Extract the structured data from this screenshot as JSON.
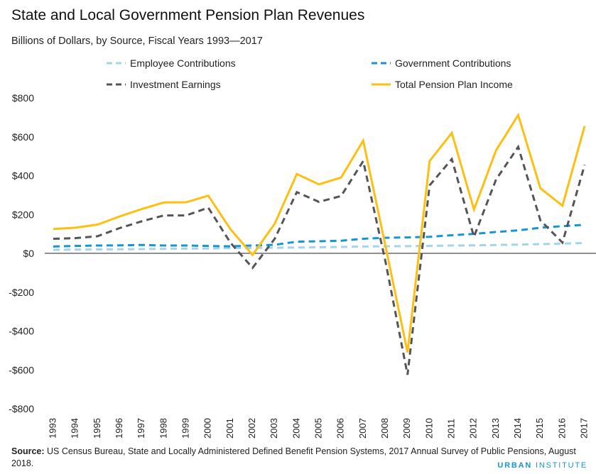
{
  "title": "State and Local Government Pension Plan Revenues",
  "subtitle": "Billions of Dollars, by Source, Fiscal Years 1993—2017",
  "source_label": "Source:",
  "source_text": " US Census Bureau, State and Locally Administered Defined Benefit Pension Systems, 2017 Annual Survey of Public Pensions, August 2018.",
  "brand": {
    "bold": "URBAN",
    "normal": " INSTITUTE"
  },
  "chart_data": {
    "type": "line",
    "legend_position": "top",
    "grid": false,
    "ylim": [
      -800,
      800
    ],
    "yticks": [
      800,
      600,
      400,
      200,
      0,
      -200,
      -400,
      -600,
      -800
    ],
    "ytick_labels": [
      "$800",
      "$600",
      "$400",
      "$200",
      "$0",
      "-$200",
      "-$400",
      "-$600",
      "-$800"
    ],
    "x": [
      "1993",
      "1994",
      "1995",
      "1996",
      "1997",
      "1998",
      "1999",
      "2000",
      "2001",
      "2002",
      "2003",
      "2004",
      "2005",
      "2006",
      "2007",
      "2008",
      "2009",
      "2010",
      "2011",
      "2012",
      "2013",
      "2014",
      "2015",
      "2016",
      "2017"
    ],
    "series": [
      {
        "name": "Employee Contributions",
        "color": "#a2d4ec",
        "dash": "dashed",
        "values": [
          18,
          19,
          20,
          21,
          22,
          23,
          24,
          25,
          27,
          28,
          29,
          30,
          31,
          33,
          35,
          36,
          37,
          38,
          40,
          41,
          43,
          45,
          47,
          50,
          53
        ]
      },
      {
        "name": "Government Contributions",
        "color": "#1696d2",
        "dash": "dashed",
        "values": [
          35,
          38,
          40,
          41,
          43,
          40,
          40,
          38,
          36,
          40,
          44,
          60,
          62,
          65,
          75,
          80,
          82,
          85,
          93,
          100,
          110,
          118,
          132,
          140,
          147
        ]
      },
      {
        "name": "Investment Earnings",
        "color": "#555555",
        "dash": "dashed",
        "values": [
          75,
          78,
          88,
          130,
          165,
          195,
          195,
          235,
          55,
          -75,
          75,
          315,
          265,
          295,
          475,
          -40,
          -625,
          350,
          485,
          85,
          380,
          548,
          170,
          55,
          455
        ]
      },
      {
        "name": "Total Pension Plan Income",
        "color": "#fdbf11",
        "dash": "solid",
        "values": [
          125,
          132,
          148,
          190,
          228,
          262,
          263,
          297,
          125,
          -8,
          152,
          408,
          355,
          390,
          580,
          40,
          -510,
          475,
          620,
          225,
          530,
          712,
          335,
          245,
          655
        ]
      }
    ]
  }
}
